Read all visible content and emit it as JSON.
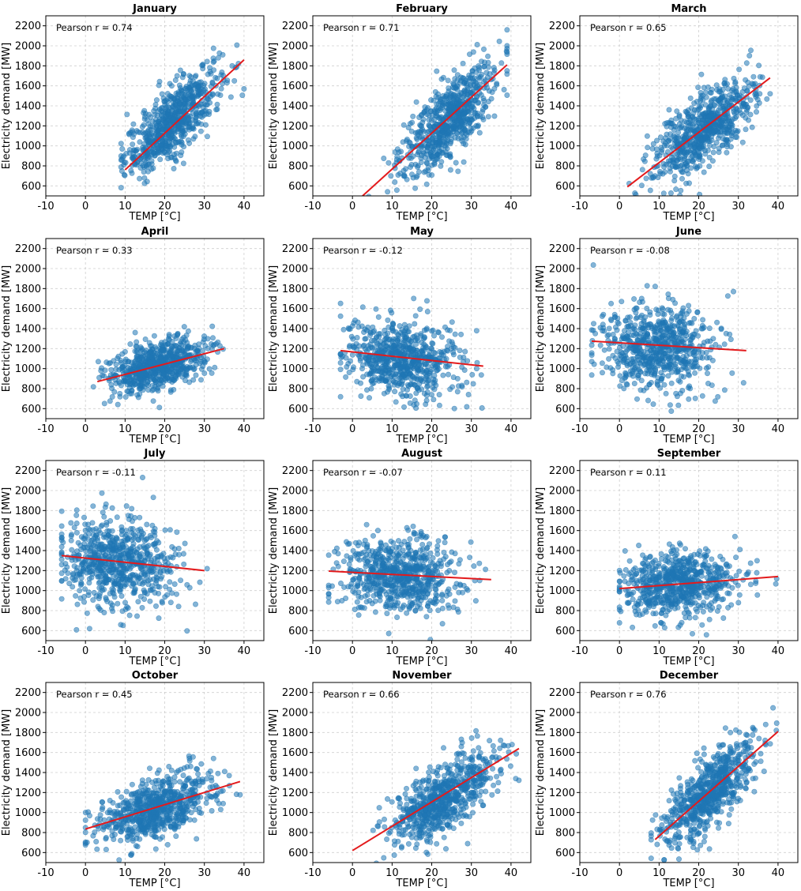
{
  "chart_data": [
    {
      "type": "scatter",
      "title": "January",
      "annotation": "Pearson r = 0.74",
      "r": 0.74,
      "xlabel": "TEMP [°C]",
      "ylabel": "Electricity demand [MW]",
      "xlim": [
        -10,
        45
      ],
      "ylim": [
        500,
        2300
      ],
      "xticks": [
        -10,
        0,
        10,
        20,
        30,
        40
      ],
      "yticks": [
        600,
        800,
        1000,
        1200,
        1400,
        1600,
        1800,
        2000,
        2200
      ],
      "x_range": [
        9,
        40
      ],
      "cloud_center": [
        22,
        1250
      ],
      "x_spread": 6,
      "y_spread": 230,
      "n_points": 700,
      "fit_line": {
        "x": [
          10,
          40
        ],
        "y": [
          760,
          1860
        ]
      }
    },
    {
      "type": "scatter",
      "title": "February",
      "annotation": "Pearson r = 0.71",
      "r": 0.71,
      "xlabel": "TEMP [°C]",
      "ylabel": "Electricity demand [MW]",
      "xlim": [
        -10,
        45
      ],
      "ylim": [
        500,
        2300
      ],
      "xticks": [
        -10,
        0,
        10,
        20,
        30,
        40
      ],
      "yticks": [
        600,
        800,
        1000,
        1200,
        1400,
        1600,
        1800,
        2000,
        2200
      ],
      "x_range": [
        1,
        39
      ],
      "cloud_center": [
        24,
        1250
      ],
      "x_spread": 6,
      "y_spread": 250,
      "n_points": 700,
      "fit_line": {
        "x": [
          2,
          39
        ],
        "y": [
          480,
          1810
        ]
      }
    },
    {
      "type": "scatter",
      "title": "March",
      "annotation": "Pearson r = 0.65",
      "r": 0.65,
      "xlabel": "TEMP [°C]",
      "ylabel": "Electricity demand [MW]",
      "xlim": [
        -10,
        45
      ],
      "ylim": [
        500,
        2300
      ],
      "xticks": [
        -10,
        0,
        10,
        20,
        30,
        40
      ],
      "yticks": [
        600,
        800,
        1000,
        1200,
        1400,
        1600,
        1800,
        2000,
        2200
      ],
      "x_range": [
        1,
        38
      ],
      "cloud_center": [
        21,
        1150
      ],
      "x_spread": 6.5,
      "y_spread": 230,
      "n_points": 700,
      "fit_line": {
        "x": [
          2,
          38
        ],
        "y": [
          590,
          1680
        ]
      }
    },
    {
      "type": "scatter",
      "title": "April",
      "annotation": "Pearson r = 0.33",
      "r": 0.33,
      "xlabel": "TEMP [°C]",
      "ylabel": "Electricity demand [MW]",
      "xlim": [
        -10,
        45
      ],
      "ylim": [
        500,
        2300
      ],
      "xticks": [
        -10,
        0,
        10,
        20,
        30,
        40
      ],
      "yticks": [
        600,
        800,
        1000,
        1200,
        1400,
        1600,
        1800,
        2000,
        2200
      ],
      "x_range": [
        2,
        35
      ],
      "cloud_center": [
        18,
        1020
      ],
      "x_spread": 6,
      "y_spread": 140,
      "n_points": 700,
      "fit_line": {
        "x": [
          3,
          35
        ],
        "y": [
          870,
          1200
        ]
      }
    },
    {
      "type": "scatter",
      "title": "May",
      "annotation": "Pearson r = -0.12",
      "r": -0.12,
      "xlabel": "TEMP [°C]",
      "ylabel": "Electricity demand [MW]",
      "xlim": [
        -10,
        45
      ],
      "ylim": [
        500,
        2300
      ],
      "xticks": [
        -10,
        0,
        10,
        20,
        30,
        40
      ],
      "yticks": [
        600,
        800,
        1000,
        1200,
        1400,
        1600,
        1800,
        2000,
        2200
      ],
      "x_range": [
        -3,
        33
      ],
      "cloud_center": [
        12,
        1100
      ],
      "x_spread": 7,
      "y_spread": 200,
      "n_points": 700,
      "fit_line": {
        "x": [
          -3,
          33
        ],
        "y": [
          1180,
          1025
        ]
      }
    },
    {
      "type": "scatter",
      "title": "June",
      "annotation": "Pearson r = -0.08",
      "r": -0.08,
      "xlabel": "TEMP [°C]",
      "ylabel": "Electricity demand [MW]",
      "xlim": [
        -10,
        45
      ],
      "ylim": [
        500,
        2300
      ],
      "xticks": [
        -10,
        0,
        10,
        20,
        30,
        40
      ],
      "yticks": [
        600,
        800,
        1000,
        1200,
        1400,
        1600,
        1800,
        2000,
        2200
      ],
      "x_range": [
        -7,
        32
      ],
      "cloud_center": [
        9,
        1230
      ],
      "x_spread": 7,
      "y_spread": 220,
      "n_points": 700,
      "fit_line": {
        "x": [
          -7,
          32
        ],
        "y": [
          1275,
          1180
        ]
      }
    },
    {
      "type": "scatter",
      "title": "July",
      "annotation": "Pearson r = -0.11",
      "r": -0.11,
      "xlabel": "TEMP [°C]",
      "ylabel": "Electricity demand [MW]",
      "xlim": [
        -10,
        45
      ],
      "ylim": [
        500,
        2300
      ],
      "xticks": [
        -10,
        0,
        10,
        20,
        30,
        40
      ],
      "yticks": [
        600,
        800,
        1000,
        1200,
        1400,
        1600,
        1800,
        2000,
        2200
      ],
      "x_range": [
        -6,
        31
      ],
      "cloud_center": [
        8,
        1280
      ],
      "x_spread": 7,
      "y_spread": 230,
      "n_points": 700,
      "fit_line": {
        "x": [
          -6,
          30
        ],
        "y": [
          1350,
          1200
        ]
      }
    },
    {
      "type": "scatter",
      "title": "August",
      "annotation": "Pearson r = -0.07",
      "r": -0.07,
      "xlabel": "TEMP [°C]",
      "ylabel": "Electricity demand [MW]",
      "xlim": [
        -10,
        45
      ],
      "ylim": [
        500,
        2300
      ],
      "xticks": [
        -10,
        0,
        10,
        20,
        30,
        40
      ],
      "yticks": [
        600,
        800,
        1000,
        1200,
        1400,
        1600,
        1800,
        2000,
        2200
      ],
      "x_range": [
        -6,
        35
      ],
      "cloud_center": [
        12,
        1160
      ],
      "x_spread": 7.5,
      "y_spread": 200,
      "n_points": 700,
      "fit_line": {
        "x": [
          -6,
          35
        ],
        "y": [
          1195,
          1110
        ]
      }
    },
    {
      "type": "scatter",
      "title": "September",
      "annotation": "Pearson r = 0.11",
      "r": 0.11,
      "xlabel": "TEMP [°C]",
      "ylabel": "Electricity demand [MW]",
      "xlim": [
        -10,
        45
      ],
      "ylim": [
        500,
        2300
      ],
      "xticks": [
        -10,
        0,
        10,
        20,
        30,
        40
      ],
      "yticks": [
        600,
        800,
        1000,
        1200,
        1400,
        1600,
        1800,
        2000,
        2200
      ],
      "x_range": [
        0,
        40
      ],
      "cloud_center": [
        15,
        1070
      ],
      "x_spread": 7,
      "y_spread": 180,
      "n_points": 700,
      "fit_line": {
        "x": [
          0,
          40
        ],
        "y": [
          1020,
          1140
        ]
      }
    },
    {
      "type": "scatter",
      "title": "October",
      "annotation": "Pearson r = 0.45",
      "r": 0.45,
      "xlabel": "TEMP [°C]",
      "ylabel": "Electricity demand [MW]",
      "xlim": [
        -10,
        45
      ],
      "ylim": [
        500,
        2300
      ],
      "xticks": [
        -10,
        0,
        10,
        20,
        30,
        40
      ],
      "yticks": [
        600,
        800,
        1000,
        1200,
        1400,
        1600,
        1800,
        2000,
        2200
      ],
      "x_range": [
        0,
        39
      ],
      "cloud_center": [
        18,
        1040
      ],
      "x_spread": 7,
      "y_spread": 170,
      "n_points": 700,
      "fit_line": {
        "x": [
          0,
          39
        ],
        "y": [
          835,
          1310
        ]
      }
    },
    {
      "type": "scatter",
      "title": "November",
      "annotation": "Pearson r = 0.66",
      "r": 0.66,
      "xlabel": "TEMP [°C]",
      "ylabel": "Electricity demand [MW]",
      "xlim": [
        -10,
        45
      ],
      "ylim": [
        500,
        2300
      ],
      "xticks": [
        -10,
        0,
        10,
        20,
        30,
        40
      ],
      "yticks": [
        600,
        800,
        1000,
        1200,
        1400,
        1600,
        1800,
        2000,
        2200
      ],
      "x_range": [
        0,
        42
      ],
      "cloud_center": [
        23,
        1140
      ],
      "x_spread": 6.5,
      "y_spread": 220,
      "n_points": 700,
      "fit_line": {
        "x": [
          0,
          42
        ],
        "y": [
          620,
          1640
        ]
      }
    },
    {
      "type": "scatter",
      "title": "December",
      "annotation": "Pearson r = 0.76",
      "r": 0.76,
      "xlabel": "TEMP [°C]",
      "ylabel": "Electricity demand [MW]",
      "xlim": [
        -10,
        45
      ],
      "ylim": [
        500,
        2300
      ],
      "xticks": [
        -10,
        0,
        10,
        20,
        30,
        40
      ],
      "yticks": [
        600,
        800,
        1000,
        1200,
        1400,
        1600,
        1800,
        2000,
        2200
      ],
      "x_range": [
        8,
        40
      ],
      "cloud_center": [
        23,
        1210
      ],
      "x_spread": 6,
      "y_spread": 240,
      "n_points": 700,
      "fit_line": {
        "x": [
          9,
          40
        ],
        "y": [
          730,
          1810
        ]
      }
    }
  ]
}
